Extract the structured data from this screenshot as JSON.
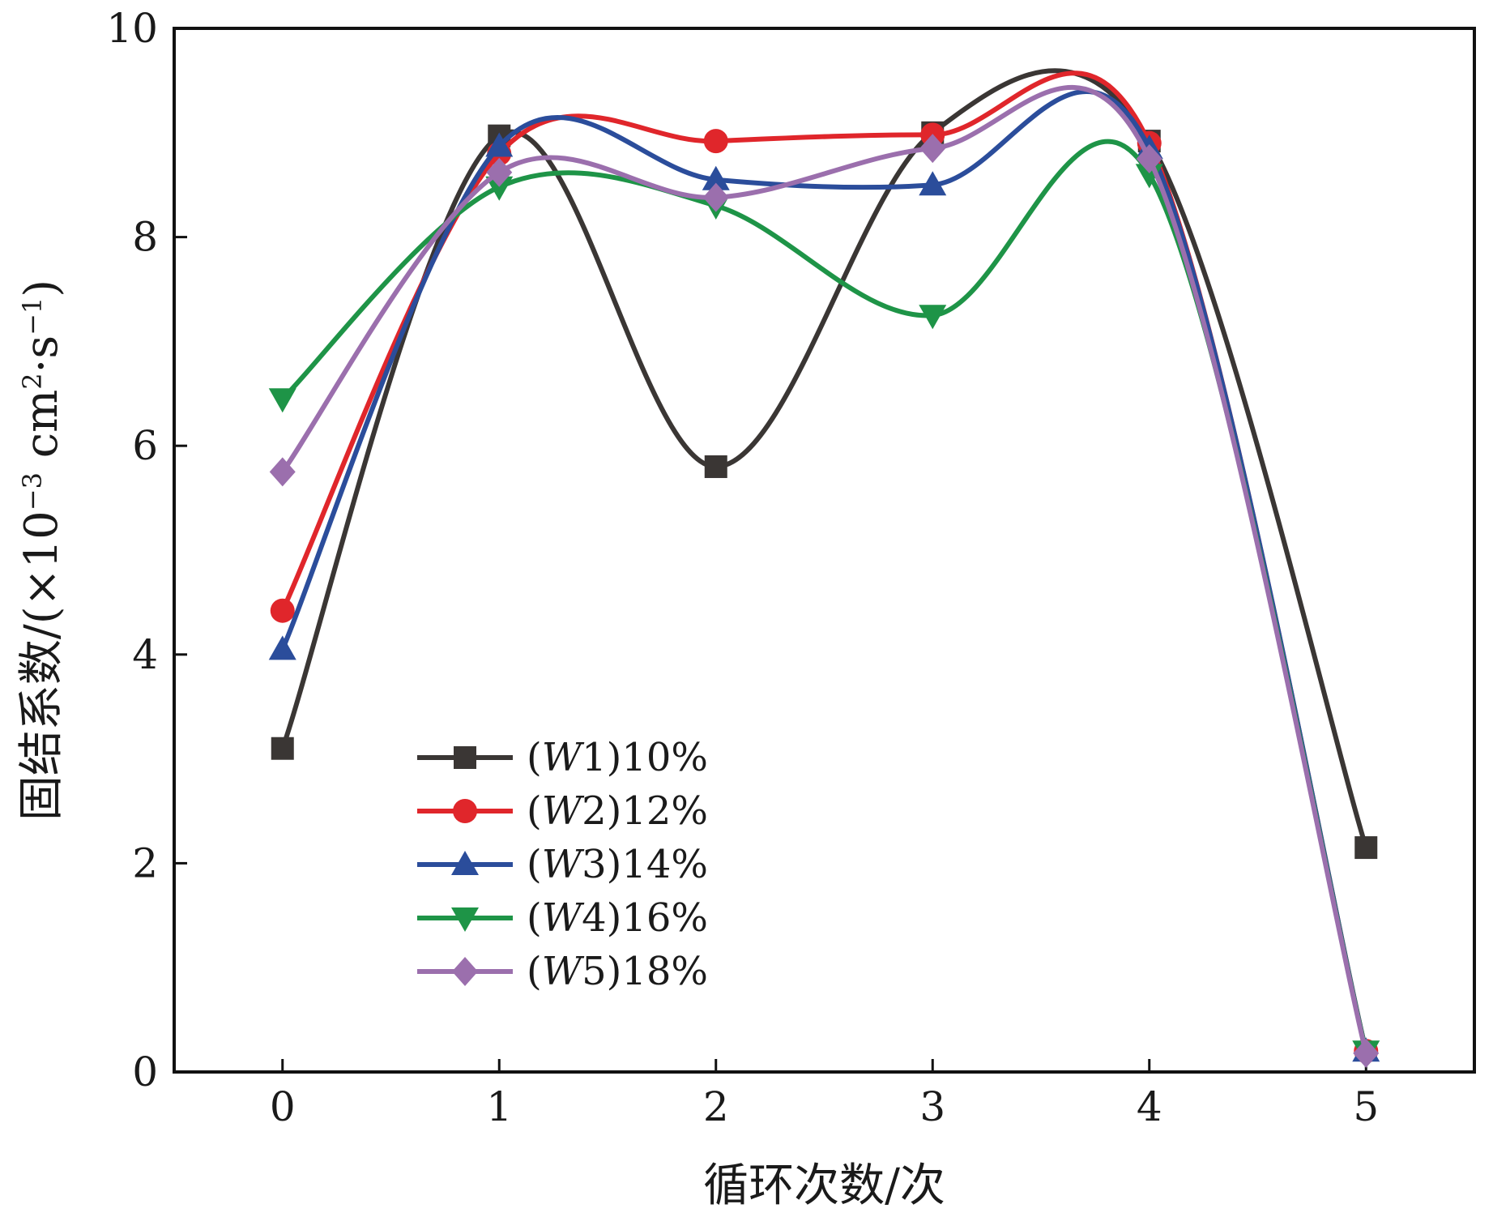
{
  "chart_data": {
    "type": "line",
    "title": "",
    "xlabel": "循环次数/次",
    "ylabel": {
      "prefix": "固结系数/(×10",
      "exp1": "−3",
      "mid": " cm",
      "exp2": "2",
      "mid2": "·s",
      "exp3": "−1",
      "suffix": ")"
    },
    "x": [
      0,
      1,
      2,
      3,
      4,
      5
    ],
    "xlim": [
      -0.5,
      5.5
    ],
    "ylim": [
      0,
      10
    ],
    "xticks": [
      "0",
      "1",
      "2",
      "3",
      "4",
      "5"
    ],
    "yticks": [
      "0",
      "2",
      "4",
      "6",
      "8",
      "10"
    ],
    "smooth": true,
    "legend_position": "lower-left",
    "series": [
      {
        "name": "(W1)10%",
        "label_italic": "W",
        "label_pre": "(",
        "label_post": "1)10%",
        "color": "#3a3634",
        "marker": "square",
        "values": [
          3.1,
          8.97,
          5.8,
          9.0,
          8.92,
          2.15
        ]
      },
      {
        "name": "(W2)12%",
        "label_italic": "W",
        "label_pre": "(",
        "label_post": "2)12%",
        "color": "#e0262b",
        "marker": "circle",
        "values": [
          4.42,
          8.8,
          8.92,
          8.98,
          8.9,
          0.2
        ]
      },
      {
        "name": "(W3)14%",
        "label_italic": "W",
        "label_pre": "(",
        "label_post": "3)14%",
        "color": "#2b4d9b",
        "marker": "triangle-up",
        "values": [
          4.05,
          8.87,
          8.55,
          8.5,
          8.85,
          0.2
        ]
      },
      {
        "name": "(W4)16%",
        "label_italic": "W",
        "label_pre": "(",
        "label_post": "4)16%",
        "color": "#1e9447",
        "marker": "triangle-down",
        "values": [
          6.45,
          8.48,
          8.3,
          7.25,
          8.6,
          0.2
        ]
      },
      {
        "name": "(W5)18%",
        "label_italic": "W",
        "label_pre": "(",
        "label_post": "5)18%",
        "color": "#9b6fad",
        "marker": "diamond",
        "values": [
          5.75,
          8.62,
          8.38,
          8.85,
          8.75,
          0.18
        ]
      }
    ]
  }
}
